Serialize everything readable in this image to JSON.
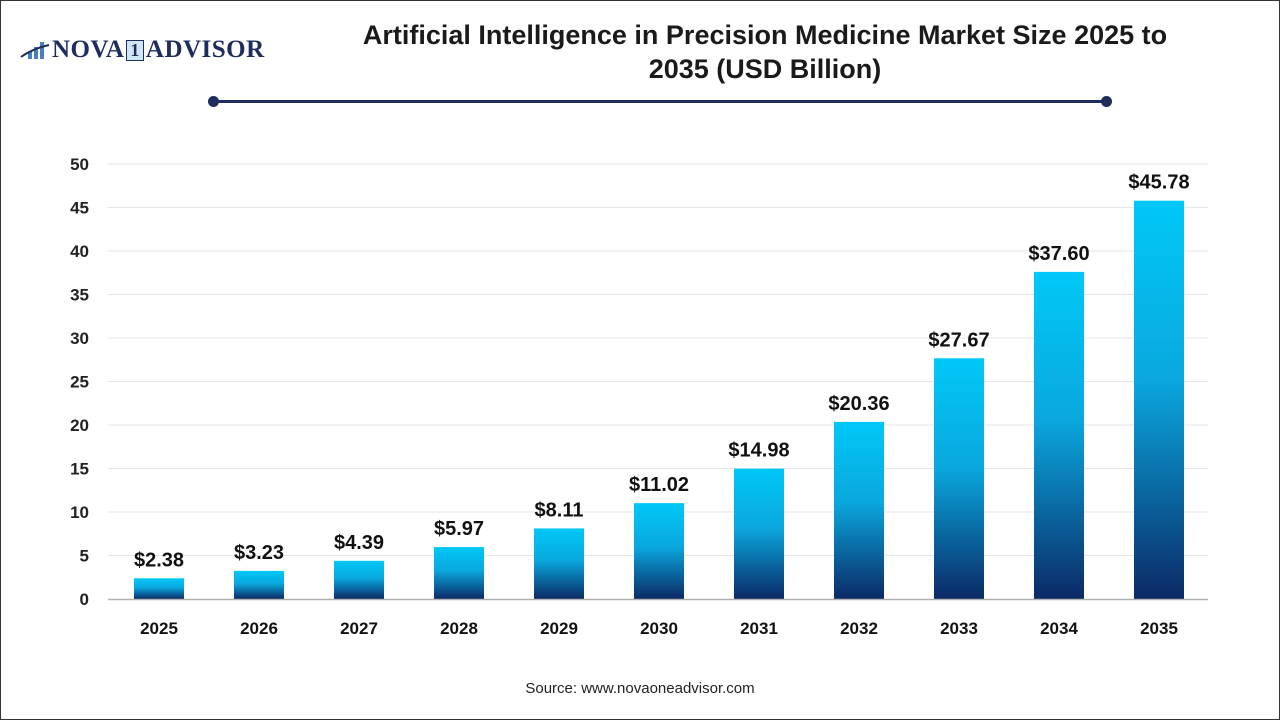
{
  "logo": {
    "text_left": "NOVA",
    "text_mid": "1",
    "text_right": "ADVISOR"
  },
  "source": "Source: www.novaoneadvisor.com",
  "chart_data": {
    "type": "bar",
    "title": "Artificial Intelligence in Precision Medicine Market Size 2025 to 2035 (USD Billion)",
    "categories": [
      "2025",
      "2026",
      "2027",
      "2028",
      "2029",
      "2030",
      "2031",
      "2032",
      "2033",
      "2034",
      "2035"
    ],
    "values": [
      2.38,
      3.23,
      4.39,
      5.97,
      8.11,
      11.02,
      14.98,
      20.36,
      27.67,
      37.6,
      45.78
    ],
    "data_labels": [
      "$2.38",
      "$3.23",
      "$4.39",
      "$5.97",
      "$8.11",
      "$11.02",
      "$14.98",
      "$20.36",
      "$27.67",
      "$37.60",
      "$45.78"
    ],
    "xlabel": "",
    "ylabel": "",
    "ylim": [
      0,
      50
    ],
    "yticks": [
      0,
      5,
      10,
      15,
      20,
      25,
      30,
      35,
      40,
      45,
      50
    ],
    "grid": true,
    "colors": {
      "bar_top": "#00c8f8",
      "bar_bottom": "#0b2a66",
      "title_rule": "#1f2d5c"
    }
  }
}
